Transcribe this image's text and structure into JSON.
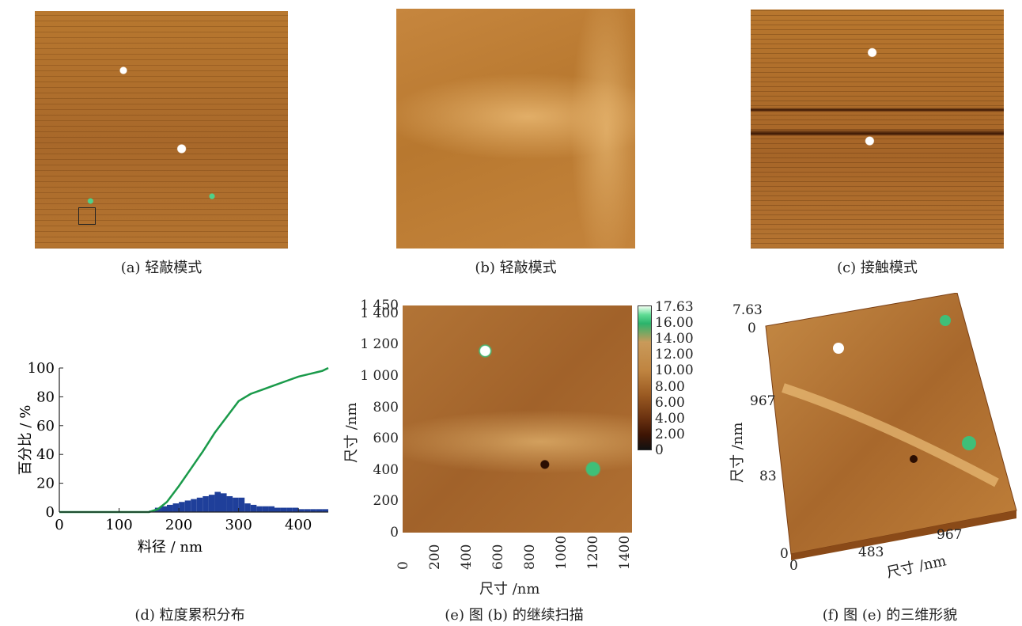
{
  "captions": {
    "a": "(a) 轻敲模式",
    "b": "(b) 轻敲模式",
    "c": "(c) 接触模式",
    "d": "(d) 粒度累积分布",
    "e": "(e) 图 (b) 的继续扫描",
    "f": "(f) 图 (e) 的三维形貌"
  },
  "colors": {
    "afm_brown": "#b8782f",
    "afm_dark": "#3a1604",
    "afm_green": "#3fbf78",
    "curve_green": "#1a9a4a",
    "bar_blue": "#1f3f9a"
  },
  "panel_d": {
    "xlabel": "料径 / nm",
    "ylabel": "百分比 / %",
    "xticks": [
      "0",
      "100",
      "200",
      "300",
      "400"
    ],
    "yticks": [
      "0",
      "20",
      "40",
      "60",
      "80",
      "100"
    ]
  },
  "panel_e": {
    "xlabel": "尺寸 /nm",
    "ylabel": "尺寸 /nm",
    "xticks": [
      "0",
      "200",
      "400",
      "600",
      "800",
      "1000",
      "1200",
      "1400"
    ],
    "yticks": [
      "0",
      "200",
      "400",
      "600",
      "800",
      "1 000",
      "1 200",
      "1 400",
      "1 450"
    ],
    "scale_labels": [
      "17.63",
      "16.00",
      "14.00",
      "12.00",
      "10.00",
      "8.00",
      "6.00",
      "4.00",
      "2.00",
      "0"
    ]
  },
  "panel_f": {
    "xlabel": "尺寸 /nm",
    "ylabel": "尺寸 /nm",
    "z_top": "7.63",
    "z_zero": "0",
    "xticks": [
      "0",
      "483",
      "967"
    ],
    "yticks": [
      "0",
      "83",
      "967"
    ]
  },
  "chart_data": {
    "type": "bar",
    "xlabel": "料径 / nm",
    "ylabel": "百分比 / %",
    "xlim": [
      0,
      450
    ],
    "ylim": [
      0,
      100
    ],
    "categories": [
      155,
      165,
      175,
      185,
      195,
      205,
      215,
      225,
      235,
      245,
      255,
      265,
      275,
      285,
      295,
      305,
      315,
      325,
      335,
      345,
      355,
      365,
      375,
      385,
      395,
      405,
      415,
      425,
      435,
      445
    ],
    "series": [
      {
        "values": [
          1,
          3,
          4,
          5,
          6,
          7,
          8,
          9,
          10,
          11,
          12,
          14,
          13,
          11,
          10,
          10,
          6,
          5,
          4,
          4,
          4,
          3,
          3,
          3,
          3,
          2,
          2,
          2,
          2,
          2
        ]
      },
      {
        "x": [
          0,
          50,
          100,
          150,
          165,
          180,
          200,
          220,
          240,
          260,
          280,
          300,
          320,
          340,
          360,
          380,
          400,
          420,
          440,
          450
        ],
        "values": [
          0,
          0,
          0,
          0,
          2,
          7,
          18,
          30,
          42,
          55,
          66,
          77,
          82,
          85,
          88,
          91,
          94,
          96,
          98,
          100
        ]
      }
    ]
  }
}
